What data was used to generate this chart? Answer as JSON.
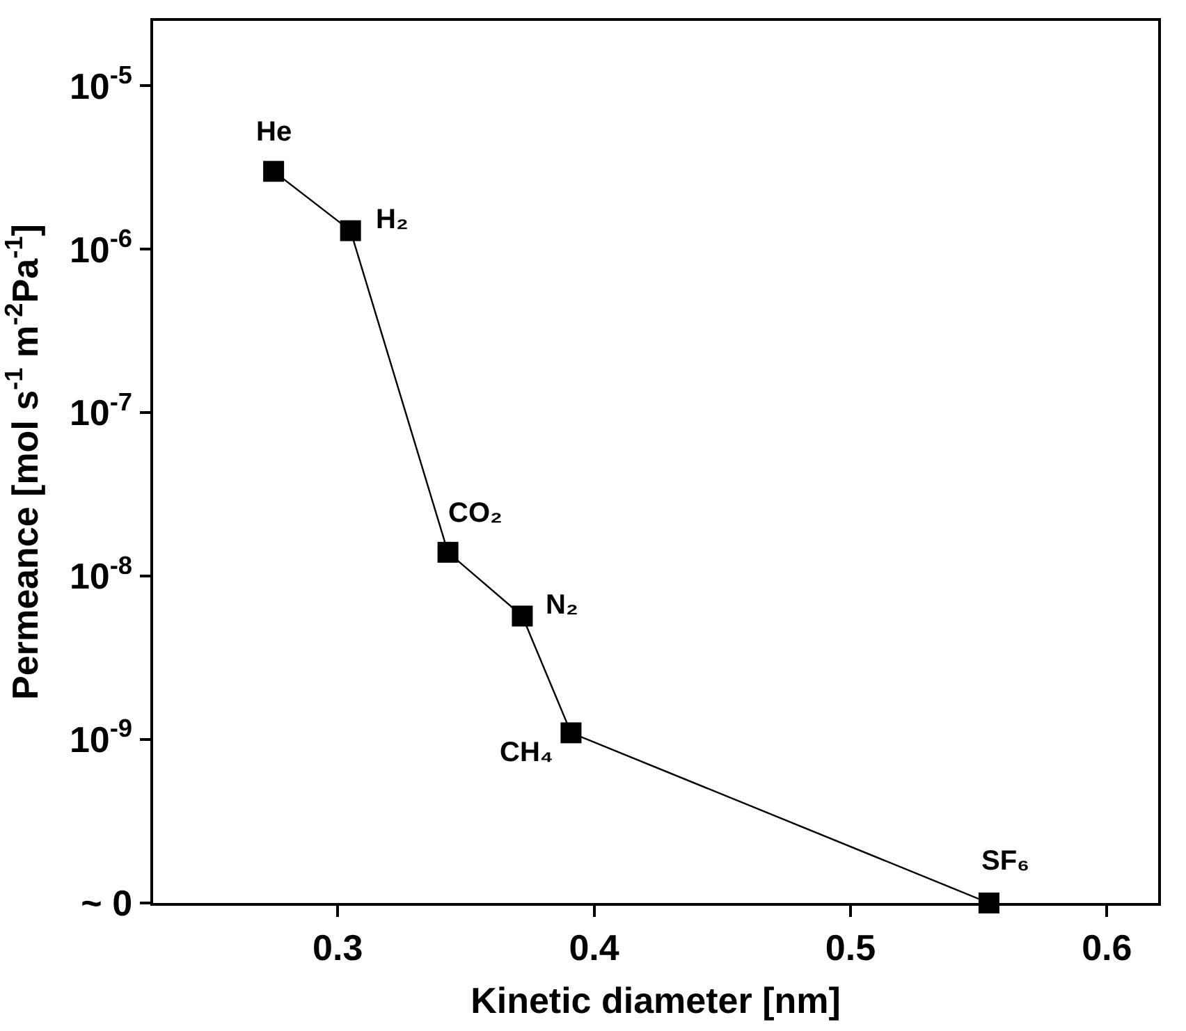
{
  "chart_data": {
    "type": "line",
    "xlabel": "Kinetic diameter [nm]",
    "ylabel": "Permeance [mol s$^{-1}$ m$^{-2}$Pa$^{-1}$]",
    "log": "y",
    "x": [
      0.275,
      0.305,
      0.343,
      0.372,
      0.391,
      0.554
    ],
    "series": [
      {
        "color": "#000000",
        "values": [
          3e-06,
          1.3e-06,
          1.4e-08,
          5.7e-09,
          1.1e-09,
          1e-10
        ]
      }
    ],
    "marker": "square",
    "line_style": "solid",
    "xlim": [
      0.228,
      0.62
    ],
    "xticks": [
      0.3,
      0.4,
      0.5,
      0.6
    ],
    "ylim": [
      1e-10,
      2.5e-05
    ],
    "yticks": [
      {
        "value": 1e-10,
        "label": "~ 0"
      },
      {
        "value": 1e-09,
        "label": "10$^{-9}$"
      },
      {
        "value": 1e-08,
        "label": "10$^{-8}$"
      },
      {
        "value": 1e-07,
        "label": "10$^{-7}$"
      },
      {
        "value": 1e-06,
        "label": "10$^{-6}$"
      },
      {
        "value": 1e-05,
        "label": "10$^{-5}$"
      }
    ],
    "annotations": [
      {
        "text": "He",
        "x": 0.275,
        "y": 3e-06
      },
      {
        "text": "H₂",
        "x": 0.305,
        "y": 1.3e-06
      },
      {
        "text": "CO₂",
        "x": 0.343,
        "y": 1.4e-08
      },
      {
        "text": "N₂",
        "x": 0.372,
        "y": 5.7e-09
      },
      {
        "text": "CH₄",
        "x": 0.391,
        "y": 1.1e-09
      },
      {
        "text": "SF₆",
        "x": 0.554,
        "y": 1e-10
      }
    ]
  }
}
